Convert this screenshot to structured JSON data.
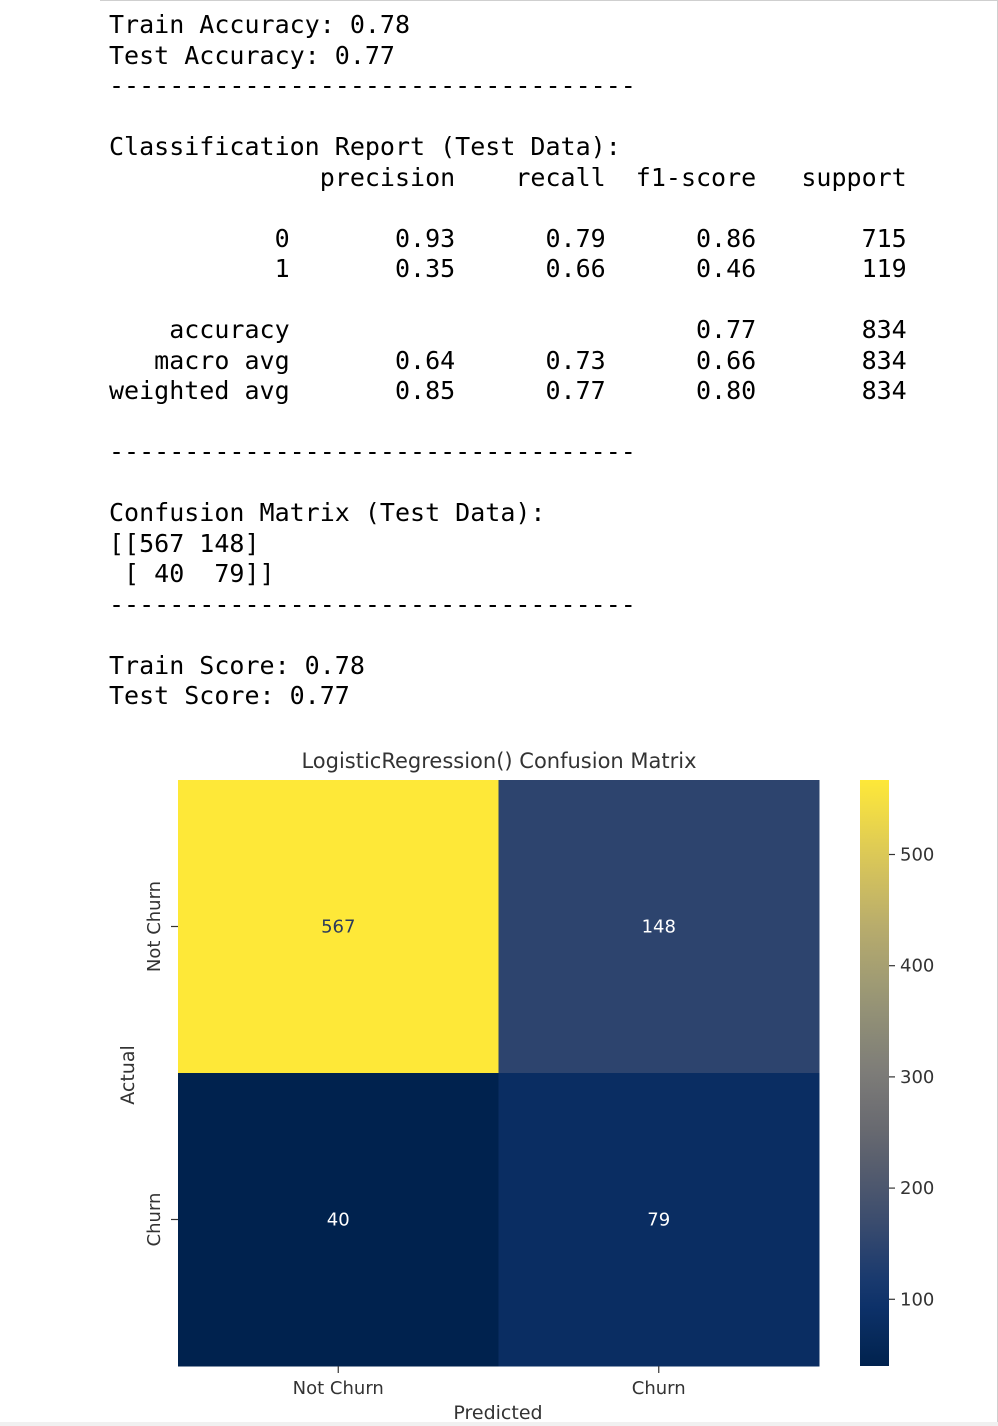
{
  "console_lines": [
    "Train Accuracy: 0.78",
    "Test Accuracy: 0.77",
    "-----------------------------------",
    "",
    "Classification Report (Test Data):",
    "              precision    recall  f1-score   support",
    "",
    "           0       0.93      0.79      0.86       715",
    "           1       0.35      0.66      0.46       119",
    "",
    "    accuracy                           0.77       834",
    "   macro avg       0.64      0.73      0.66       834",
    "weighted avg       0.85      0.77      0.80       834",
    "",
    "-----------------------------------",
    "",
    "Confusion Matrix (Test Data):",
    "[[567 148]",
    " [ 40  79]]",
    "-----------------------------------",
    "",
    "Train Score: 0.78",
    "Test Score: 0.77"
  ],
  "chart_data": {
    "type": "heatmap",
    "title": "LogisticRegression() Confusion Matrix",
    "xlabel": "Predicted",
    "ylabel": "Actual",
    "x_categories": [
      "Not Churn",
      "Churn"
    ],
    "y_categories": [
      "Not Churn",
      "Churn"
    ],
    "values": [
      [
        567,
        148
      ],
      [
        40,
        79
      ]
    ],
    "colormap": "cividis",
    "colorbar": {
      "min": 40,
      "max": 567,
      "ticks": [
        100,
        200,
        300,
        400,
        500
      ]
    },
    "colors": {
      "cmap_low": "#00224e",
      "cmap_mid": "#7c7b78",
      "cmap_high": "#fee838",
      "annot_light": "#ffffff",
      "annot_dark": "#2a3a5c"
    }
  }
}
